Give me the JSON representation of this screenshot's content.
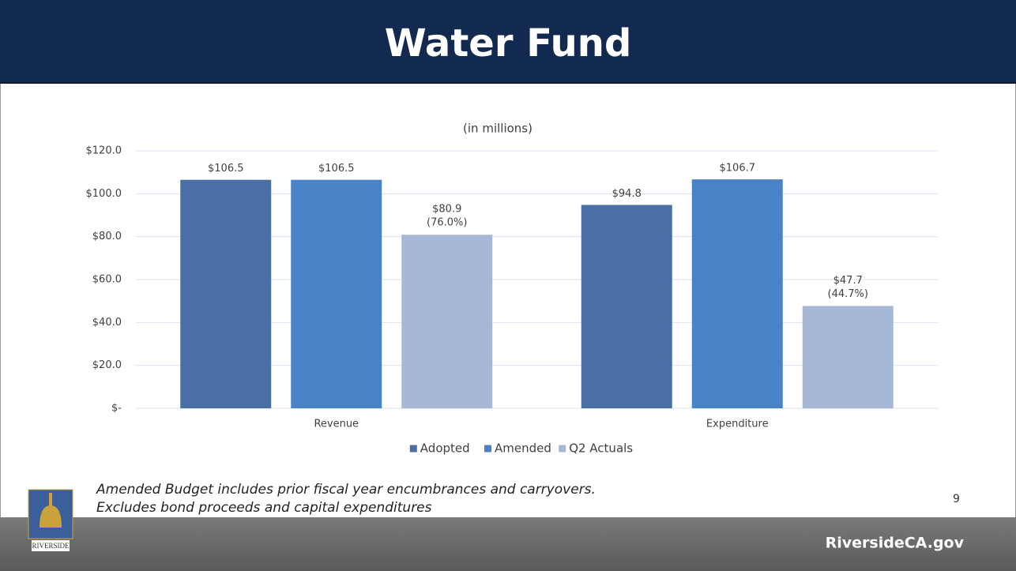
{
  "title": "Water Fund",
  "chart_data": {
    "type": "bar",
    "subtitle": "(in millions)",
    "categories": [
      "Revenue",
      "Expenditure"
    ],
    "series": [
      {
        "name": "Adopted",
        "color": "#4a6fa5",
        "values": [
          106.5,
          94.8
        ],
        "value_labels": [
          "$106.5",
          "$94.8"
        ]
      },
      {
        "name": "Amended",
        "color": "#4a82c6",
        "values": [
          106.5,
          106.7
        ],
        "value_labels": [
          "$106.5",
          "$106.7"
        ]
      },
      {
        "name": "Q2 Actuals",
        "color": "#a6b8d6",
        "values": [
          80.9,
          47.7
        ],
        "value_labels": [
          "$80.9",
          "$47.7"
        ],
        "percent_labels": [
          "(76.0%)",
          "(44.7%)"
        ]
      }
    ],
    "ylim": [
      0,
      120
    ],
    "yticks": [
      {
        "value": 0,
        "label": "$-"
      },
      {
        "value": 20,
        "label": "$20.0"
      },
      {
        "value": 40,
        "label": "$40.0"
      },
      {
        "value": 60,
        "label": "$60.0"
      },
      {
        "value": 80,
        "label": "$80.0"
      },
      {
        "value": 100,
        "label": "$100.0"
      },
      {
        "value": 120,
        "label": "$120.0"
      }
    ],
    "grid": true,
    "legend": "bottom"
  },
  "notes": [
    "Amended Budget includes prior fiscal year encumbrances and carryovers.",
    "Excludes bond proceeds and capital expenditures"
  ],
  "page_number": "9",
  "logo_text": "RIVERSIDE",
  "footer": "RiversideCA.gov"
}
